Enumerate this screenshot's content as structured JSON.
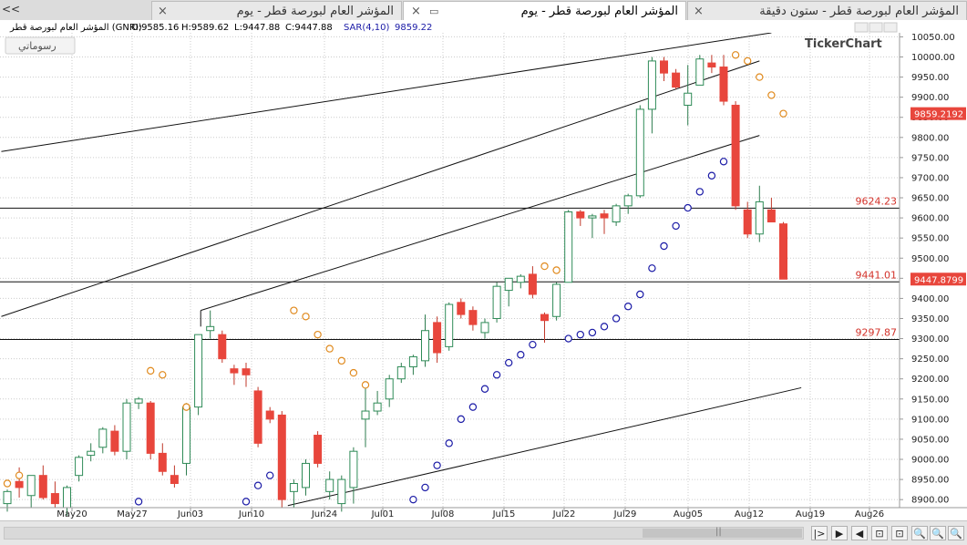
{
  "tabs": {
    "nav": "<<",
    "tab1": {
      "label": "المؤشر العام لبورصة قطر - ستون دقيقة",
      "close": "×"
    },
    "tab2": {
      "label": "المؤشر العام لبورصة قطر - يوم",
      "close": "×"
    },
    "tab3": {
      "label": "المؤشر العام لبورصة قطر - يوم",
      "close": "×"
    }
  },
  "toolbar": {
    "drawings_label": "رسوماتي"
  },
  "brand": "TickerChart",
  "header": {
    "symbol": "المؤشر العام لبورصة قطر (GNRI)",
    "open": "O:9585.16",
    "high": "H:9589.62",
    "low": "L:9447.88",
    "close": "C:9447.88",
    "indicator": "SAR(4,10)",
    "indicator_value": "9859.22"
  },
  "colors": {
    "up": "#2e8b57",
    "down": "#e8463c",
    "sar_below": "#1a1aa6",
    "sar_above": "#e08a1e",
    "line": "#111111",
    "price_label_bg": "#e8463c"
  },
  "chart_data": {
    "type": "candlestick",
    "x_ticks": [
      "May20",
      "May27",
      "Jun03",
      "Jun10",
      "Jun24",
      "Jul01",
      "Jul08",
      "Jul15",
      "Jul22",
      "Jul29",
      "Aug05",
      "Aug12",
      "Aug19",
      "Aug26"
    ],
    "y_ticks": [
      8900,
      8950,
      9000,
      9050,
      9100,
      9150,
      9200,
      9250,
      9300,
      9350,
      9400,
      9450,
      9500,
      9550,
      9600,
      9650,
      9700,
      9750,
      9800,
      9850,
      9900,
      9950,
      10000,
      10050
    ],
    "ylim": [
      8880,
      10060
    ],
    "horizontal_lines": [
      {
        "value": 9624.23,
        "label": "9624.23"
      },
      {
        "value": 9441.01,
        "label": "9441.01"
      },
      {
        "value": 9297.87,
        "label": "9297.87"
      }
    ],
    "price_markers": [
      {
        "value": 9859.2192,
        "label": "9859.2192"
      },
      {
        "value": 9447.8799,
        "label": "9447.8799"
      }
    ],
    "candles": [
      {
        "o": 8890,
        "h": 8925,
        "l": 8870,
        "c": 8920
      },
      {
        "o": 8945,
        "h": 8980,
        "l": 8905,
        "c": 8930
      },
      {
        "o": 8910,
        "h": 8960,
        "l": 8880,
        "c": 8960
      },
      {
        "o": 8960,
        "h": 8985,
        "l": 8900,
        "c": 8905
      },
      {
        "o": 8915,
        "h": 8945,
        "l": 8880,
        "c": 8890
      },
      {
        "o": 8880,
        "h": 8935,
        "l": 8860,
        "c": 8930
      },
      {
        "o": 8960,
        "h": 9010,
        "l": 8945,
        "c": 9005
      },
      {
        "o": 9010,
        "h": 9040,
        "l": 8995,
        "c": 9020
      },
      {
        "o": 9030,
        "h": 9080,
        "l": 9015,
        "c": 9075
      },
      {
        "o": 9070,
        "h": 9085,
        "l": 9010,
        "c": 9020
      },
      {
        "o": 9020,
        "h": 9150,
        "l": 9000,
        "c": 9140
      },
      {
        "o": 9140,
        "h": 9155,
        "l": 9125,
        "c": 9150
      },
      {
        "o": 9140,
        "h": 9145,
        "l": 9000,
        "c": 9015
      },
      {
        "o": 9015,
        "h": 9040,
        "l": 8960,
        "c": 8970
      },
      {
        "o": 8960,
        "h": 8985,
        "l": 8930,
        "c": 8940
      },
      {
        "o": 8990,
        "h": 9140,
        "l": 8960,
        "c": 9130
      },
      {
        "o": 9130,
        "h": 9310,
        "l": 9110,
        "c": 9310
      },
      {
        "o": 9320,
        "h": 9370,
        "l": 9300,
        "c": 9330
      },
      {
        "o": 9310,
        "h": 9320,
        "l": 9240,
        "c": 9250
      },
      {
        "o": 9225,
        "h": 9235,
        "l": 9185,
        "c": 9215
      },
      {
        "o": 9225,
        "h": 9240,
        "l": 9180,
        "c": 9210
      },
      {
        "o": 9170,
        "h": 9180,
        "l": 9030,
        "c": 9040
      },
      {
        "o": 9120,
        "h": 9130,
        "l": 9090,
        "c": 9100
      },
      {
        "o": 9110,
        "h": 9120,
        "l": 8880,
        "c": 8900
      },
      {
        "o": 8920,
        "h": 8950,
        "l": 8880,
        "c": 8940
      },
      {
        "o": 8930,
        "h": 9000,
        "l": 8910,
        "c": 8990
      },
      {
        "o": 9060,
        "h": 9070,
        "l": 8980,
        "c": 8990
      },
      {
        "o": 8920,
        "h": 8970,
        "l": 8900,
        "c": 8950
      },
      {
        "o": 8890,
        "h": 8960,
        "l": 8870,
        "c": 8950
      },
      {
        "o": 8930,
        "h": 9030,
        "l": 8890,
        "c": 9020
      },
      {
        "o": 9100,
        "h": 9180,
        "l": 9030,
        "c": 9120
      },
      {
        "o": 9120,
        "h": 9170,
        "l": 9110,
        "c": 9140
      },
      {
        "o": 9150,
        "h": 9210,
        "l": 9130,
        "c": 9200
      },
      {
        "o": 9200,
        "h": 9240,
        "l": 9190,
        "c": 9230
      },
      {
        "o": 9230,
        "h": 9260,
        "l": 9210,
        "c": 9255
      },
      {
        "o": 9245,
        "h": 9360,
        "l": 9230,
        "c": 9320
      },
      {
        "o": 9340,
        "h": 9355,
        "l": 9240,
        "c": 9265
      },
      {
        "o": 9280,
        "h": 9390,
        "l": 9270,
        "c": 9385
      },
      {
        "o": 9390,
        "h": 9400,
        "l": 9350,
        "c": 9360
      },
      {
        "o": 9370,
        "h": 9380,
        "l": 9320,
        "c": 9335
      },
      {
        "o": 9315,
        "h": 9350,
        "l": 9300,
        "c": 9340
      },
      {
        "o": 9350,
        "h": 9440,
        "l": 9340,
        "c": 9430
      },
      {
        "o": 9420,
        "h": 9450,
        "l": 9380,
        "c": 9450
      },
      {
        "o": 9440,
        "h": 9460,
        "l": 9425,
        "c": 9455
      },
      {
        "o": 9460,
        "h": 9480,
        "l": 9400,
        "c": 9410
      },
      {
        "o": 9360,
        "h": 9365,
        "l": 9290,
        "c": 9345
      },
      {
        "o": 9355,
        "h": 9440,
        "l": 9345,
        "c": 9435
      },
      {
        "o": 9440,
        "h": 9620,
        "l": 9440,
        "c": 9615
      },
      {
        "o": 9615,
        "h": 9620,
        "l": 9580,
        "c": 9600
      },
      {
        "o": 9600,
        "h": 9610,
        "l": 9550,
        "c": 9605
      },
      {
        "o": 9610,
        "h": 9620,
        "l": 9560,
        "c": 9600
      },
      {
        "o": 9590,
        "h": 9635,
        "l": 9580,
        "c": 9630
      },
      {
        "o": 9630,
        "h": 9660,
        "l": 9610,
        "c": 9655
      },
      {
        "o": 9655,
        "h": 9880,
        "l": 9650,
        "c": 9870
      },
      {
        "o": 9870,
        "h": 10000,
        "l": 9810,
        "c": 9990
      },
      {
        "o": 9990,
        "h": 10000,
        "l": 9940,
        "c": 9960
      },
      {
        "o": 9960,
        "h": 9970,
        "l": 9920,
        "c": 9925
      },
      {
        "o": 9880,
        "h": 9980,
        "l": 9830,
        "c": 9910
      },
      {
        "o": 9930,
        "h": 10005,
        "l": 9930,
        "c": 9995
      },
      {
        "o": 9985,
        "h": 10005,
        "l": 9960,
        "c": 9975
      },
      {
        "o": 9975,
        "h": 10005,
        "l": 9880,
        "c": 9890
      },
      {
        "o": 9880,
        "h": 9890,
        "l": 9620,
        "c": 9630
      },
      {
        "o": 9620,
        "h": 9640,
        "l": 9550,
        "c": 9560
      },
      {
        "o": 9560,
        "h": 9680,
        "l": 9540,
        "c": 9640
      },
      {
        "o": 9620,
        "h": 9650,
        "l": 9590,
        "c": 9590
      },
      {
        "o": 9585.16,
        "h": 9589.62,
        "l": 9447.88,
        "c": 9447.88
      }
    ],
    "sar": [
      {
        "i": 0,
        "v": 8940,
        "pos": "above"
      },
      {
        "i": 1,
        "v": 8960,
        "pos": "above"
      },
      {
        "i": 11,
        "v": 8895,
        "pos": "below"
      },
      {
        "i": 12,
        "v": 9220,
        "pos": "above"
      },
      {
        "i": 13,
        "v": 9210,
        "pos": "above"
      },
      {
        "i": 15,
        "v": 9130,
        "pos": "above"
      },
      {
        "i": 20,
        "v": 8895,
        "pos": "below"
      },
      {
        "i": 21,
        "v": 8935,
        "pos": "below"
      },
      {
        "i": 22,
        "v": 8960,
        "pos": "below"
      },
      {
        "i": 24,
        "v": 9370,
        "pos": "above"
      },
      {
        "i": 25,
        "v": 9355,
        "pos": "above"
      },
      {
        "i": 26,
        "v": 9310,
        "pos": "above"
      },
      {
        "i": 27,
        "v": 9275,
        "pos": "above"
      },
      {
        "i": 28,
        "v": 9245,
        "pos": "above"
      },
      {
        "i": 29,
        "v": 9215,
        "pos": "above"
      },
      {
        "i": 30,
        "v": 9185,
        "pos": "above"
      },
      {
        "i": 34,
        "v": 8900,
        "pos": "below"
      },
      {
        "i": 35,
        "v": 8930,
        "pos": "below"
      },
      {
        "i": 36,
        "v": 8985,
        "pos": "below"
      },
      {
        "i": 37,
        "v": 9040,
        "pos": "below"
      },
      {
        "i": 38,
        "v": 9100,
        "pos": "below"
      },
      {
        "i": 39,
        "v": 9130,
        "pos": "below"
      },
      {
        "i": 40,
        "v": 9175,
        "pos": "below"
      },
      {
        "i": 41,
        "v": 9210,
        "pos": "below"
      },
      {
        "i": 42,
        "v": 9240,
        "pos": "below"
      },
      {
        "i": 43,
        "v": 9260,
        "pos": "below"
      },
      {
        "i": 44,
        "v": 9285,
        "pos": "below"
      },
      {
        "i": 45,
        "v": 9480,
        "pos": "above"
      },
      {
        "i": 46,
        "v": 9470,
        "pos": "above"
      },
      {
        "i": 47,
        "v": 9300,
        "pos": "below"
      },
      {
        "i": 48,
        "v": 9310,
        "pos": "below"
      },
      {
        "i": 49,
        "v": 9315,
        "pos": "below"
      },
      {
        "i": 50,
        "v": 9330,
        "pos": "below"
      },
      {
        "i": 51,
        "v": 9350,
        "pos": "below"
      },
      {
        "i": 52,
        "v": 9380,
        "pos": "below"
      },
      {
        "i": 53,
        "v": 9410,
        "pos": "below"
      },
      {
        "i": 54,
        "v": 9475,
        "pos": "below"
      },
      {
        "i": 55,
        "v": 9530,
        "pos": "below"
      },
      {
        "i": 56,
        "v": 9580,
        "pos": "below"
      },
      {
        "i": 57,
        "v": 9625,
        "pos": "below"
      },
      {
        "i": 58,
        "v": 9665,
        "pos": "below"
      },
      {
        "i": 59,
        "v": 9705,
        "pos": "below"
      },
      {
        "i": 60,
        "v": 9740,
        "pos": "below"
      },
      {
        "i": 61,
        "v": 10005,
        "pos": "above"
      },
      {
        "i": 62,
        "v": 9990,
        "pos": "above"
      },
      {
        "i": 63,
        "v": 9950,
        "pos": "above"
      },
      {
        "i": 64,
        "v": 9905,
        "pos": "above"
      },
      {
        "i": 65,
        "v": 9859.22,
        "pos": "above"
      }
    ],
    "trendlines": [
      {
        "i1": -0.5,
        "v1": 9765,
        "i2": 64,
        "v2": 10060
      },
      {
        "i1": -0.5,
        "v1": 9355,
        "i2": 63,
        "v2": 9990
      },
      {
        "i1": 16.2,
        "v1": 9370,
        "i2": 63,
        "v2": 9805
      },
      {
        "i1": 23.5,
        "v1": 8885,
        "i2": 66.5,
        "v2": 9178
      }
    ]
  },
  "bottom": {
    "scroll_label": "||",
    "buttons": [
      "|>",
      "▶",
      "◀",
      "⊡",
      "⊡",
      "🔍",
      "🔍",
      "🔍"
    ]
  }
}
